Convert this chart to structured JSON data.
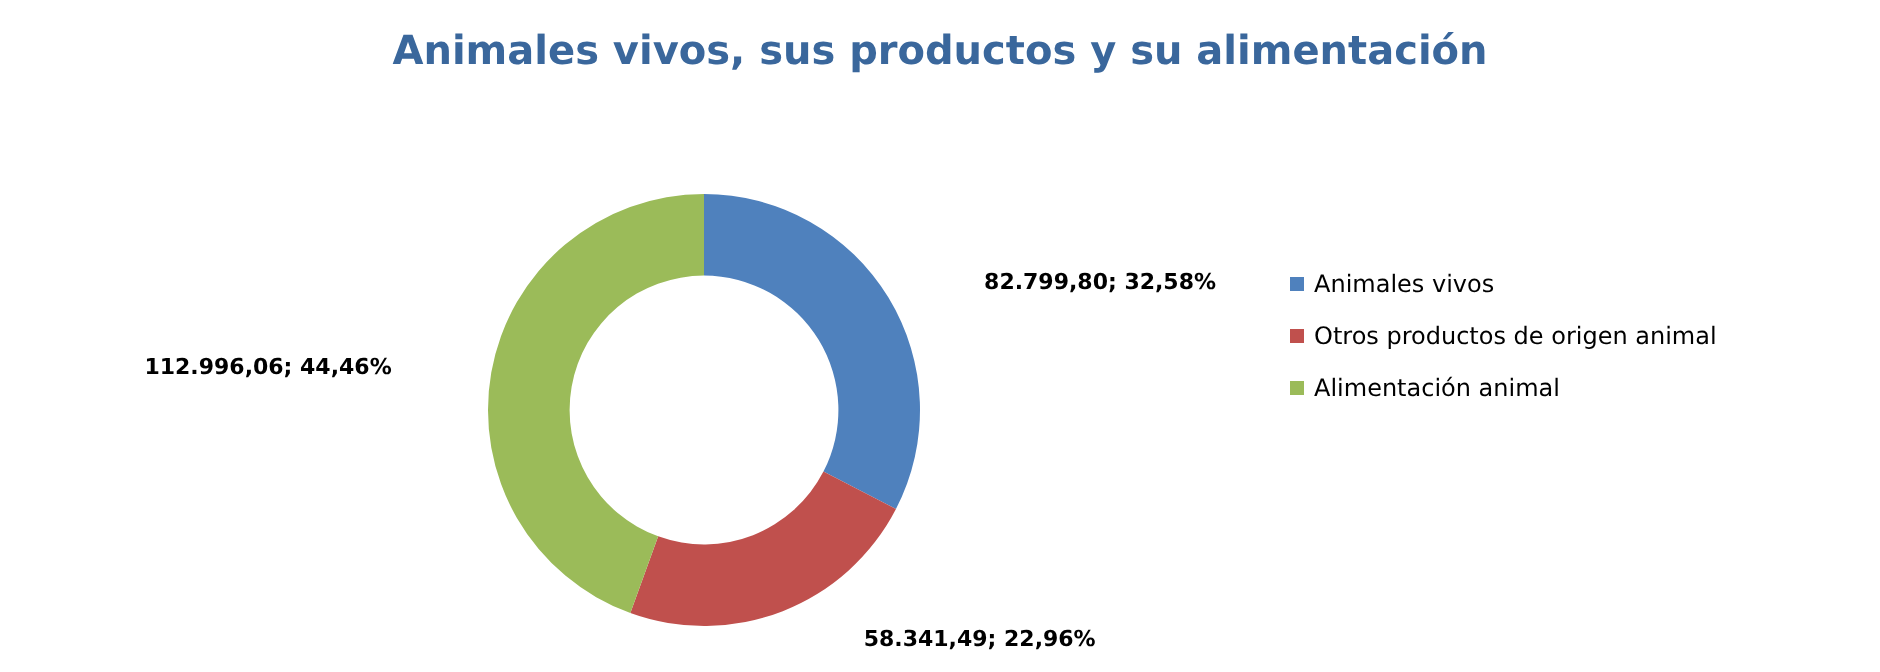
{
  "chart_data": {
    "type": "donut",
    "title": "Animales vivos, sus productos y su alimentación",
    "categories": [
      "Animales vivos",
      "Otros productos de origen animal",
      "Alimentación animal"
    ],
    "values": [
      82799.8,
      58341.49,
      112996.06
    ],
    "colors": [
      "#4f81bd",
      "#c0504d",
      "#9bbb59"
    ],
    "value_labels": [
      "82.799,80; 32,58%",
      "58.341,49; 22,96%",
      "112.996,06; 44,46%"
    ],
    "legend": "right"
  }
}
